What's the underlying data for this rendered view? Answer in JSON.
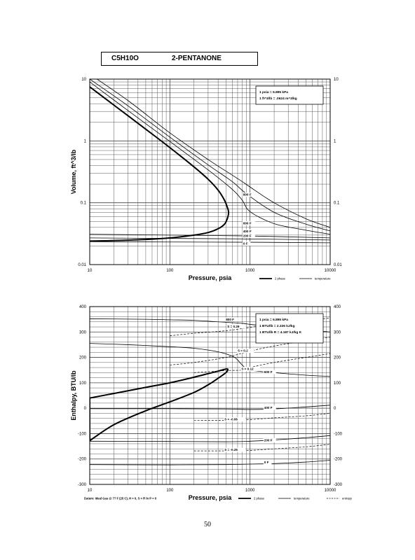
{
  "header": {
    "formula": "C5H10O",
    "name": "2-PENTANONE"
  },
  "page_number": "50",
  "chart_data": [
    {
      "type": "line",
      "xlabel": "Pressure, psia",
      "ylabel": "Volume, ft^3/lb",
      "xscale": "log",
      "yscale": "log",
      "xlim": [
        10,
        10000
      ],
      "ylim": [
        0.01,
        10
      ],
      "xticks": [
        "10",
        "100",
        "1000",
        "10000"
      ],
      "yticks_left": [
        "10",
        "1",
        "0.1",
        "0.01"
      ],
      "yticks_right": [
        "10",
        "1",
        "0.1",
        "0.01"
      ],
      "grid": true,
      "legend_position": "top-right",
      "conversion_box": [
        "1 psia = 6.895 kPa",
        "1 ft^3/lb = .0624 m^3/kg"
      ],
      "bottom_legend": [
        {
          "label": "2 phase",
          "style": "thick"
        },
        {
          "label": "temperature",
          "style": "thin"
        }
      ],
      "annotations": [
        {
          "text": "800 F",
          "x": 820,
          "y": 0.13
        },
        {
          "text": "600 F",
          "x": 820,
          "y": 0.045
        },
        {
          "text": "400 F",
          "x": 820,
          "y": 0.033
        },
        {
          "text": "200 F",
          "x": 820,
          "y": 0.028
        },
        {
          "text": "0 F",
          "x": 820,
          "y": 0.021
        }
      ],
      "series": [
        {
          "style": "two-phase",
          "x": [
            10,
            20,
            50,
            100,
            200,
            300,
            400,
            480,
            520,
            540,
            520,
            480,
            400,
            300,
            200,
            100,
            50,
            20,
            10
          ],
          "y": [
            7.5,
            3.8,
            1.55,
            0.78,
            0.38,
            0.24,
            0.16,
            0.11,
            0.085,
            0.07,
            0.055,
            0.045,
            0.038,
            0.033,
            0.03,
            0.027,
            0.0255,
            0.0245,
            0.024
          ]
        },
        {
          "style": "temperature",
          "x": [
            10,
            30,
            100,
            300,
            600,
            800,
            1000,
            2000,
            5000,
            10000
          ],
          "y": [
            12,
            4.5,
            1.35,
            0.5,
            0.28,
            0.22,
            0.18,
            0.1,
            0.055,
            0.04
          ]
        },
        {
          "style": "temperature",
          "x": [
            10,
            30,
            100,
            300,
            600,
            900,
            2000,
            5000,
            10000
          ],
          "y": [
            10,
            3.7,
            1.15,
            0.41,
            0.22,
            0.14,
            0.07,
            0.045,
            0.035
          ]
        },
        {
          "style": "temperature",
          "x": [
            10,
            30,
            100,
            300,
            600,
            800,
            1000,
            2000,
            5000,
            10000
          ],
          "y": [
            9,
            3.1,
            0.98,
            0.34,
            0.165,
            0.11,
            0.072,
            0.046,
            0.036,
            0.031
          ]
        },
        {
          "style": "temperature",
          "x": [
            10,
            100,
            1000,
            10000
          ],
          "y": [
            0.031,
            0.03,
            0.029,
            0.027
          ]
        },
        {
          "style": "temperature",
          "x": [
            10,
            100,
            1000,
            10000
          ],
          "y": [
            0.027,
            0.0265,
            0.026,
            0.025
          ]
        },
        {
          "style": "temperature",
          "x": [
            10,
            100,
            1000,
            10000
          ],
          "y": [
            0.0235,
            0.0232,
            0.023,
            0.0225
          ]
        }
      ]
    },
    {
      "type": "line",
      "xlabel": "Pressure, psia",
      "ylabel": "Enthalpy, BTU/lb",
      "xscale": "log",
      "xlim": [
        10,
        10000
      ],
      "ylim": [
        -300,
        400
      ],
      "xticks": [
        "10",
        "100",
        "1000",
        "10000"
      ],
      "yticks_left": [
        "400",
        "300",
        "200",
        "100",
        "0",
        "-100",
        "-200",
        "-300"
      ],
      "yticks_right": [
        "400",
        "300",
        "200",
        "100",
        "0",
        "-100",
        "-200",
        "-300"
      ],
      "grid": true,
      "legend_position": "top-right",
      "conversion_box": [
        "1 psia = 6.895 kPa",
        "1 BTU/lb = 2.326 kJ/kg",
        "1 BTU/lb R = 4.187 kJ/kg K"
      ],
      "datum_note": "Datum: Ideal Gas @ 77 F (25 C), H = 0, S = R ln P = 0",
      "bottom_legend": [
        {
          "label": "2 phase",
          "style": "thick"
        },
        {
          "label": "temperature",
          "style": "thin"
        },
        {
          "label": "entropy",
          "style": "dashed"
        }
      ],
      "annotations": [
        {
          "text": "800 F",
          "x": 500,
          "y": 345
        },
        {
          "text": "S = 0.29",
          "x": 520,
          "y": 318
        },
        {
          "text": "S = 0.2",
          "x": 700,
          "y": 222
        },
        {
          "text": "S = 0.12",
          "x": 780,
          "y": 150
        },
        {
          "text": "600 F",
          "x": 1500,
          "y": 138
        },
        {
          "text": "400 F",
          "x": 1500,
          "y": -2
        },
        {
          "text": "S = -0.06",
          "x": 480,
          "y": -48
        },
        {
          "text": "200 F",
          "x": 1500,
          "y": -130
        },
        {
          "text": "S = -0.25",
          "x": 480,
          "y": -168
        },
        {
          "text": "0 F",
          "x": 1500,
          "y": -218
        }
      ],
      "series": [
        {
          "style": "two-phase",
          "x": [
            10,
            20,
            50,
            100,
            200,
            300,
            400,
            500,
            530,
            500,
            400,
            300,
            200,
            100,
            50,
            20,
            10
          ],
          "y": [
            40,
            58,
            82,
            100,
            122,
            136,
            146,
            154,
            152,
            140,
            118,
            92,
            62,
            25,
            -10,
            -65,
            -128
          ]
        },
        {
          "style": "two-phase",
          "x": [
            10,
            10
          ],
          "y": [
            -128,
            40
          ]
        },
        {
          "style": "temperature",
          "x": [
            10,
            50,
            100,
            200,
            400,
            800,
            1000,
            2000,
            5000,
            10000
          ],
          "y": [
            352,
            350,
            348,
            346,
            340,
            334,
            330,
            320,
            310,
            300
          ]
        },
        {
          "style": "temperature",
          "x": [
            10,
            30,
            100,
            200,
            400,
            600,
            700,
            800,
            1000,
            2000,
            5000,
            10000
          ],
          "y": [
            255,
            250,
            242,
            236,
            222,
            205,
            190,
            170,
            150,
            140,
            130,
            125
          ]
        },
        {
          "style": "temperature",
          "x": [
            10,
            100,
            500,
            1000,
            2000,
            5000,
            10000
          ],
          "y": [
            -2,
            -2,
            -3,
            -5,
            -3,
            5,
            12
          ]
        },
        {
          "style": "temperature",
          "x": [
            10,
            100,
            500,
            1000,
            2000,
            5000,
            10000
          ],
          "y": [
            -130,
            -131,
            -132,
            -130,
            -125,
            -116,
            -108
          ]
        },
        {
          "style": "temperature",
          "x": [
            10,
            100,
            500,
            1000,
            2000,
            5000,
            10000
          ],
          "y": [
            -222,
            -223,
            -222,
            -220,
            -218,
            -212,
            -205
          ]
        },
        {
          "style": "entropy",
          "x": [
            100,
            200,
            500,
            1000,
            2000,
            5000,
            10000
          ],
          "y": [
            285,
            295,
            305,
            318,
            332,
            345,
            355
          ]
        },
        {
          "style": "entropy",
          "x": [
            100,
            200,
            500,
            1000,
            2000,
            5000,
            10000
          ],
          "y": [
            170,
            180,
            200,
            225,
            245,
            265,
            280
          ]
        },
        {
          "style": "entropy",
          "x": [
            200,
            500,
            800,
            1000,
            2000,
            5000,
            10000
          ],
          "y": [
            140,
            148,
            150,
            160,
            180,
            200,
            215
          ]
        },
        {
          "style": "entropy",
          "x": [
            200,
            500,
            1000,
            2000,
            5000,
            10000
          ],
          "y": [
            -48,
            -48,
            -45,
            -38,
            -30,
            -20
          ]
        },
        {
          "style": "entropy",
          "x": [
            200,
            500,
            1000,
            2000,
            5000,
            10000
          ],
          "y": [
            -168,
            -168,
            -166,
            -160,
            -152,
            -142
          ]
        }
      ]
    }
  ]
}
